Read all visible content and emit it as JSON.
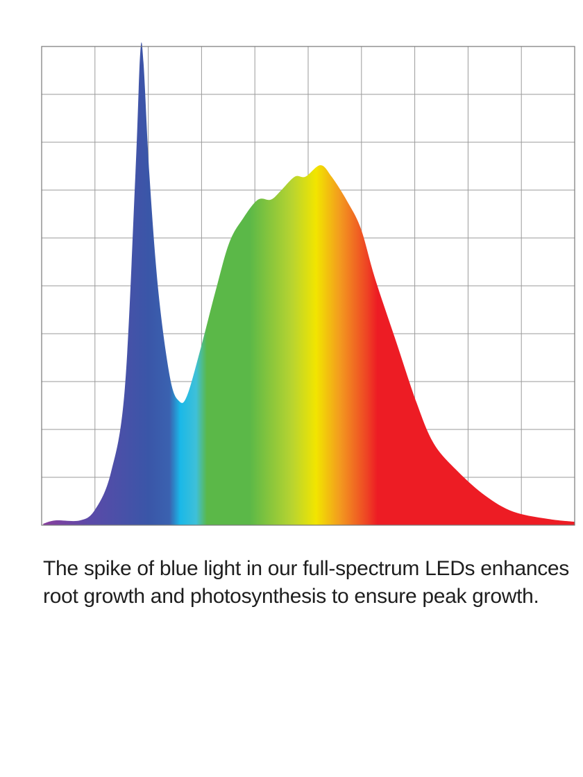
{
  "chart_data": {
    "type": "area",
    "title": "",
    "xlabel": "",
    "ylabel": "",
    "xlim": [
      0,
      10
    ],
    "ylim": [
      0,
      10
    ],
    "grid": true,
    "grid_divisions": {
      "x": 10,
      "y": 10
    },
    "tick_labels_shown": false,
    "fill": "spectrum gradient (violet to red)",
    "colors": {
      "violet": "#7b3f9e",
      "blue": "#3a56a8",
      "cyan": "#1ab8e8",
      "green": "#5bb848",
      "yellow_green": "#b8d430",
      "yellow": "#f2e500",
      "orange": "#f39a1f",
      "red": "#ed1c24",
      "grid": "#9a9a9a"
    },
    "series": [
      {
        "x": [
          0.03,
          0.26,
          0.72,
          1.0,
          1.3,
          1.56,
          1.76,
          1.85,
          1.91,
          2.02,
          2.19,
          2.41,
          2.58,
          2.73,
          2.99,
          3.26,
          3.52,
          3.78,
          4.06,
          4.3,
          4.49,
          4.75,
          4.95,
          5.23,
          5.44,
          5.73,
          5.99,
          6.25,
          6.64,
          7.03,
          7.36,
          7.81,
          8.33,
          8.85,
          9.5,
          10
        ],
        "y": [
          0.03,
          0.1,
          0.1,
          0.32,
          1.1,
          2.85,
          7.35,
          9.87,
          9.67,
          7.35,
          4.88,
          3.07,
          2.59,
          2.71,
          3.72,
          4.88,
          5.9,
          6.41,
          6.8,
          6.8,
          6.99,
          7.28,
          7.28,
          7.52,
          7.28,
          6.77,
          6.19,
          5.17,
          3.87,
          2.57,
          1.7,
          1.12,
          0.61,
          0.28,
          0.13,
          0.07
        ]
      }
    ]
  },
  "caption": "The spike of blue light in our full-spectrum LEDs enhances root growth and photosynthesis to ensure peak growth."
}
